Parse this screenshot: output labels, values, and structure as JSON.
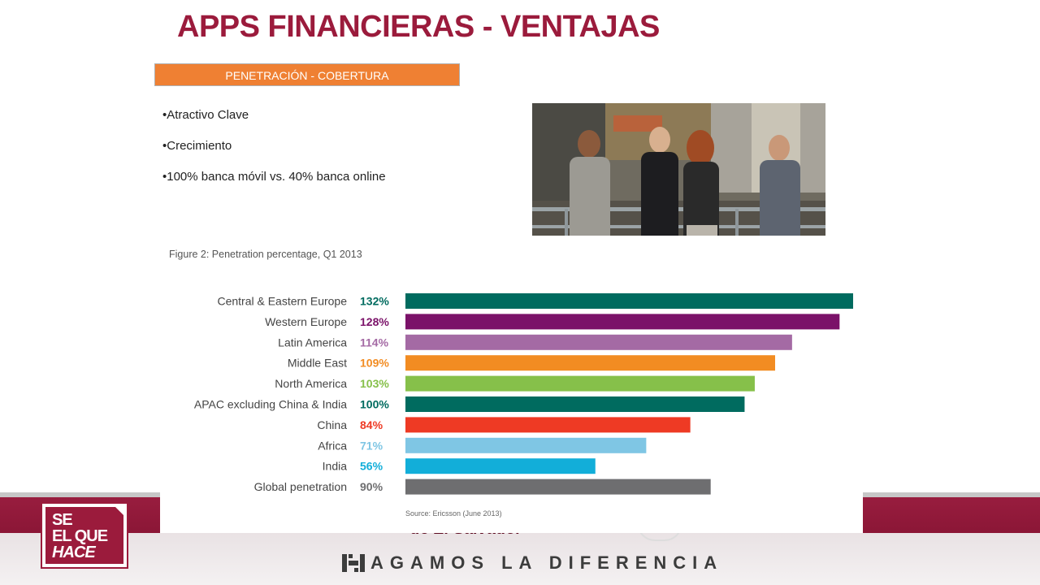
{
  "slide": {
    "title": "APPS FINANCIERAS - VENTAJAS",
    "section_label": "PENETRACIÓN - COBERTURA",
    "bullets": [
      "•Atractivo Clave",
      "•Crecimiento",
      "•100% banca móvil vs. 40% banca online"
    ]
  },
  "footer": {
    "logo_lines": [
      "SE",
      "EL QUE",
      "HACE"
    ],
    "fragment": "de El Salvador",
    "slogan": "AGAMOS LA DIFERENCIA"
  },
  "chart_data": {
    "type": "bar",
    "orientation": "horizontal",
    "title": "Figure 2: Penetration percentage, Q1 2013",
    "source": "Source: Ericsson (June 2013)",
    "categories": [
      "Central & Eastern Europe",
      "Western Europe",
      "Latin America",
      "Middle East",
      "North America",
      "APAC excluding China & India",
      "China",
      "Africa",
      "India",
      "Global penetration"
    ],
    "values": [
      132,
      128,
      114,
      109,
      103,
      100,
      84,
      71,
      56,
      90
    ],
    "value_labels": [
      "132%",
      "128%",
      "114%",
      "109%",
      "103%",
      "100%",
      "84%",
      "71%",
      "56%",
      "90%"
    ],
    "colors": [
      "#006b5f",
      "#7b1269",
      "#a46aa4",
      "#f28c22",
      "#86c04a",
      "#006b5f",
      "#ee3a24",
      "#7fc6e4",
      "#12aed9",
      "#6e6e70"
    ],
    "xlim": [
      0,
      132
    ],
    "grid": false,
    "legend": "none"
  }
}
